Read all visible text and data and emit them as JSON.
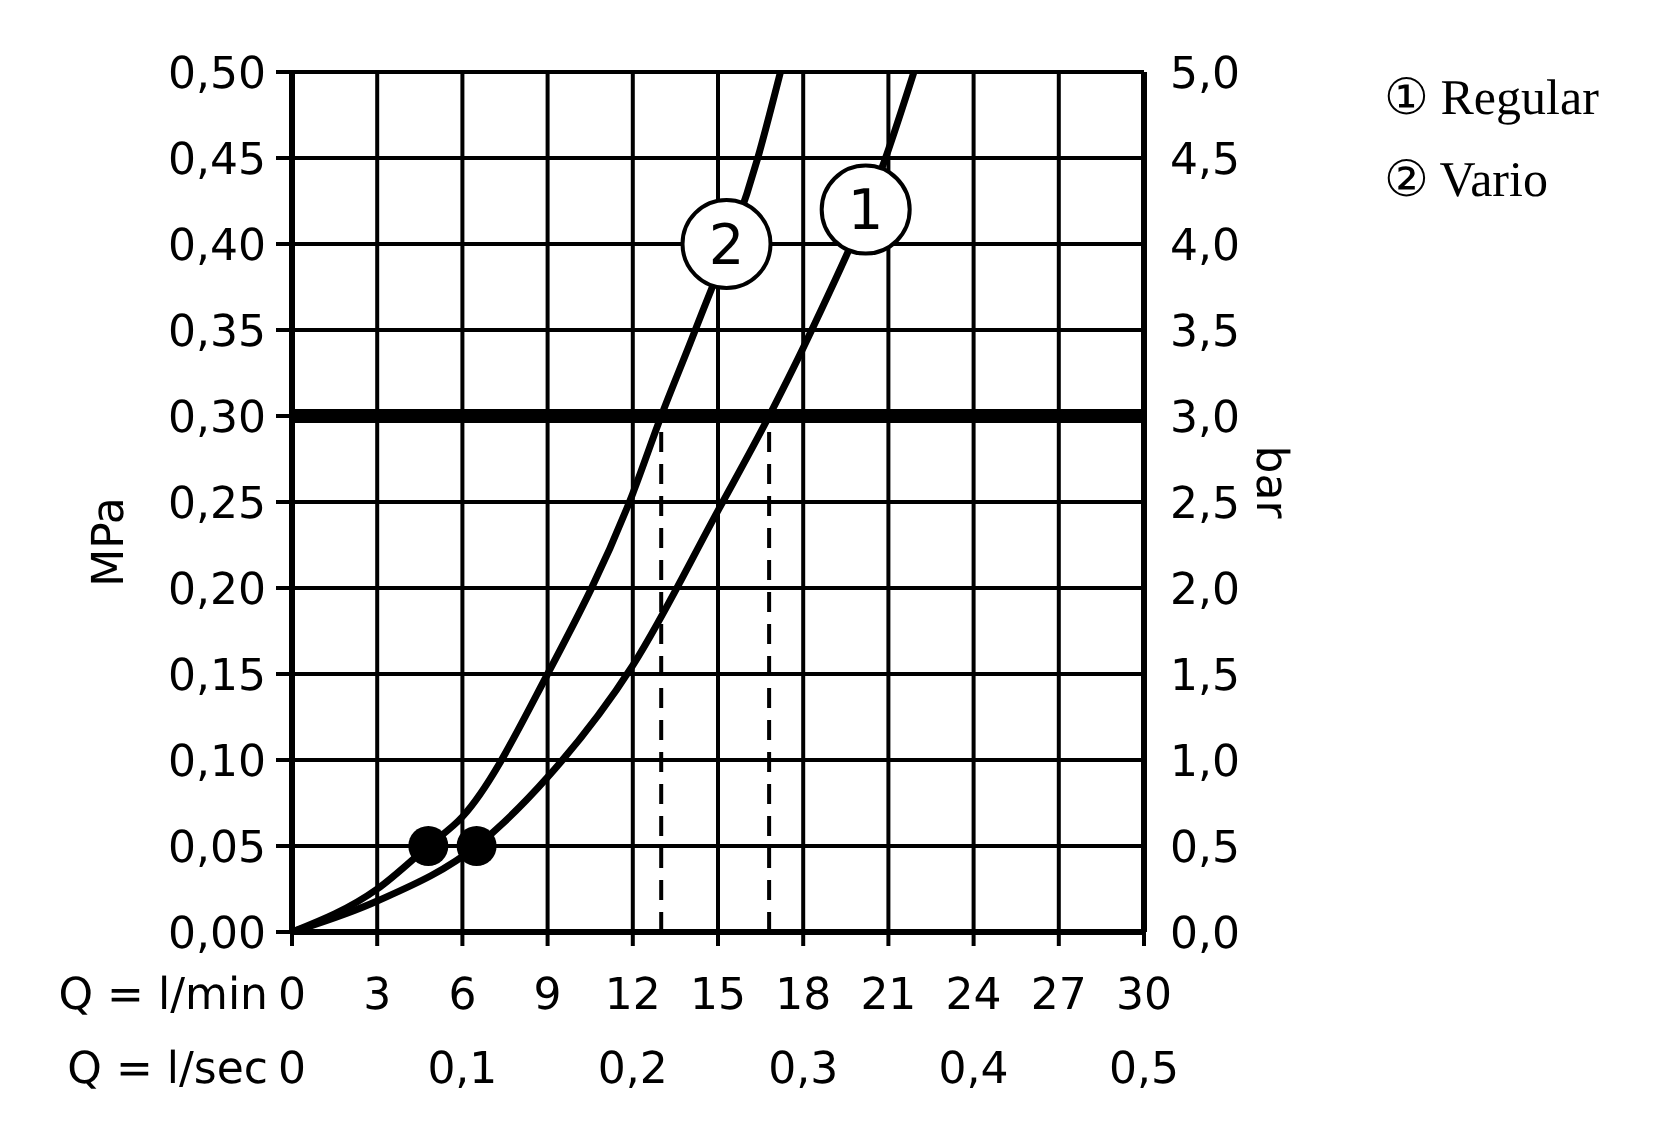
{
  "chart_data": {
    "type": "line",
    "xlabel": "Q = l/min",
    "x2label": "Q = l/sec",
    "ylabel": "MPa",
    "y2label": "bar",
    "xlim": [
      0,
      30
    ],
    "xticks": [
      0,
      3,
      6,
      9,
      12,
      15,
      18,
      21,
      24,
      27,
      30
    ],
    "x2lim": [
      0,
      0.5
    ],
    "x2ticks": [
      0,
      {
        "value": 0.1,
        "label": "0,1"
      },
      {
        "value": 0.2,
        "label": "0,2"
      },
      {
        "value": 0.3,
        "label": "0,3"
      },
      {
        "value": 0.4,
        "label": "0,4"
      },
      {
        "value": 0.5,
        "label": "0,5"
      }
    ],
    "ylim": [
      0,
      0.5
    ],
    "yticks": [
      {
        "value": 0,
        "label": "0,00"
      },
      {
        "value": 0.05,
        "label": "0,05"
      },
      {
        "value": 0.1,
        "label": "0,10"
      },
      {
        "value": 0.15,
        "label": "0,15"
      },
      {
        "value": 0.2,
        "label": "0,20"
      },
      {
        "value": 0.25,
        "label": "0,25"
      },
      {
        "value": 0.3,
        "label": "0,30"
      },
      {
        "value": 0.35,
        "label": "0,35"
      },
      {
        "value": 0.4,
        "label": "0,40"
      },
      {
        "value": 0.45,
        "label": "0,45"
      },
      {
        "value": 0.5,
        "label": "0,50"
      }
    ],
    "y2lim": [
      0,
      5
    ],
    "y2ticks": [
      {
        "value": 0,
        "label": "0,0"
      },
      {
        "value": 0.5,
        "label": "0,5"
      },
      {
        "value": 1,
        "label": "1,0"
      },
      {
        "value": 1.5,
        "label": "1,5"
      },
      {
        "value": 2,
        "label": "2,0"
      },
      {
        "value": 2.5,
        "label": "2,5"
      },
      {
        "value": 3,
        "label": "3,0"
      },
      {
        "value": 3.5,
        "label": "3,5"
      },
      {
        "value": 4,
        "label": "4,0"
      },
      {
        "value": 4.5,
        "label": "4,5"
      },
      {
        "value": 5,
        "label": "5,0"
      }
    ],
    "grid": true,
    "legend": "top right",
    "marker": "none",
    "line_style": "solid",
    "series": [
      {
        "name": "① Regular",
        "color": "#000000",
        "x": [
          0,
          3,
          6.5,
          9,
          12,
          15,
          16.8,
          18.3,
          20.9,
          21.9
        ],
        "values": [
          0,
          0.018,
          0.05,
          0.09,
          0.155,
          0.245,
          0.3,
          0.35,
          0.45,
          0.5
        ]
      },
      {
        "name": "② Vario",
        "color": "#000000",
        "x": [
          0,
          3,
          4.8,
          6,
          9,
          12,
          13.0,
          14.2,
          16.4,
          17.2
        ],
        "values": [
          0,
          0.025,
          0.05,
          0.067,
          0.15,
          0.255,
          0.3,
          0.35,
          0.45,
          0.5
        ]
      },
      {
        "type": "line",
        "color": "#000000",
        "line_style": "dashed",
        "x": [
          13.0,
          13.0
        ],
        "values": [
          0,
          0.3
        ]
      },
      {
        "type": "line",
        "color": "#000000",
        "line_style": "dashed",
        "x": [
          16.8,
          16.8
        ],
        "values": [
          0,
          0.3
        ]
      },
      {
        "type": "scatter",
        "color": "#000000",
        "marker": "circle",
        "x": [
          4.8,
          6.5
        ],
        "values": [
          0.05,
          0.05
        ]
      }
    ],
    "ref_lines": [
      {
        "axis": "y",
        "value": 0.3,
        "color": "#000000"
      }
    ],
    "annotations": [
      {
        "text": "1",
        "x": 20.2,
        "y": 0.42
      },
      {
        "text": "2",
        "x": 15.3,
        "y": 0.4
      }
    ]
  }
}
